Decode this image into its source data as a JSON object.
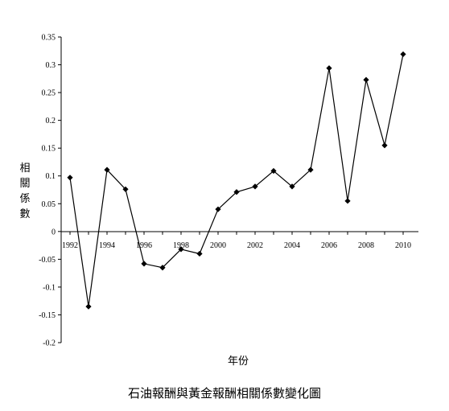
{
  "chart_data": {
    "type": "line",
    "title": "石油報酬與黃金報酬相關係數變化圖",
    "xlabel": "年份",
    "ylabel": "相關係數",
    "x": [
      1992,
      1993,
      1994,
      1995,
      1996,
      1997,
      1998,
      1999,
      2000,
      2001,
      2002,
      2003,
      2004,
      2005,
      2006,
      2007,
      2008,
      2009,
      2010
    ],
    "series": [
      {
        "values": [
          0.097,
          -0.135,
          0.111,
          0.076,
          -0.058,
          -0.065,
          -0.032,
          -0.04,
          0.04,
          0.071,
          0.081,
          0.109,
          0.081,
          0.111,
          0.294,
          0.055,
          0.273,
          0.155,
          0.319
        ]
      }
    ],
    "xtick_labels": [
      "1992",
      "1994",
      "1996",
      "1998",
      "2000",
      "2002",
      "2004",
      "2006",
      "2008",
      "2010"
    ],
    "ytick_labels": [
      "0.35",
      "0.3",
      "0.25",
      "0.2",
      "0.15",
      "0.1",
      "0.05",
      "0",
      "-0.05",
      "-0.1",
      "-0.15",
      "-0.2"
    ],
    "ylim": [
      -0.2,
      0.35
    ],
    "grid": false,
    "line_color": "#000000",
    "marker": "diamond"
  }
}
